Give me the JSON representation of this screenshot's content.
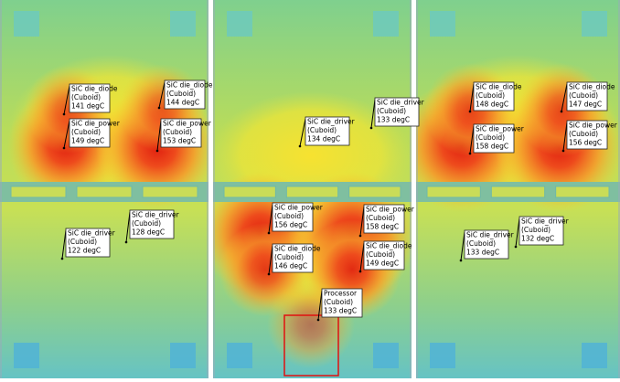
{
  "panels": [
    {
      "labels": [
        {
          "name": "SiC die_diode",
          "type": "(Cuboid)",
          "temp": "141 degC"
        },
        {
          "name": "SiC die_diode",
          "type": "(Cuboid)",
          "temp": "144 degC"
        },
        {
          "name": "SiC die_power",
          "type": "(Cuboid)",
          "temp": "149 degC"
        },
        {
          "name": "SiC die_power",
          "type": "(Cuboid)",
          "temp": "153 degC"
        },
        {
          "name": "SiC die_driver",
          "type": "(Cuboid)",
          "temp": "122 degC"
        },
        {
          "name": "SiC die_driver",
          "type": "(Cuboid)",
          "temp": "128 degC"
        }
      ]
    },
    {
      "labels": [
        {
          "name": "SiC die_driver",
          "type": "(Cuboid)",
          "temp": "134 degC"
        },
        {
          "name": "SiC die_driver",
          "type": "(Cuboid)",
          "temp": "133 degC"
        },
        {
          "name": "SiC die_power",
          "type": "(Cuboid)",
          "temp": "156 degC"
        },
        {
          "name": "SiC die_power",
          "type": "(Cuboid)",
          "temp": "158 degC"
        },
        {
          "name": "SiC die_diode",
          "type": "(Cuboid)",
          "temp": "146 degC"
        },
        {
          "name": "SiC die_diode",
          "type": "(Cuboid)",
          "temp": "149 degC"
        },
        {
          "name": "Processor",
          "type": "(Cuboid)",
          "temp": "133 degC"
        }
      ]
    },
    {
      "labels": [
        {
          "name": "SiC die_diode",
          "type": "(Cuboid)",
          "temp": "148 degC"
        },
        {
          "name": "SiC die_diode",
          "type": "(Cuboid)",
          "temp": "147 degC"
        },
        {
          "name": "SiC die_power",
          "type": "(Cuboid)",
          "temp": "158 degC"
        },
        {
          "name": "SiC die_power",
          "type": "(Cuboid)",
          "temp": "156 degC"
        },
        {
          "name": "SiC die_driver",
          "type": "(Cuboid)",
          "temp": "133 degC"
        },
        {
          "name": "SiC die_driver",
          "type": "(Cuboid)",
          "temp": "132 degC"
        }
      ]
    }
  ]
}
